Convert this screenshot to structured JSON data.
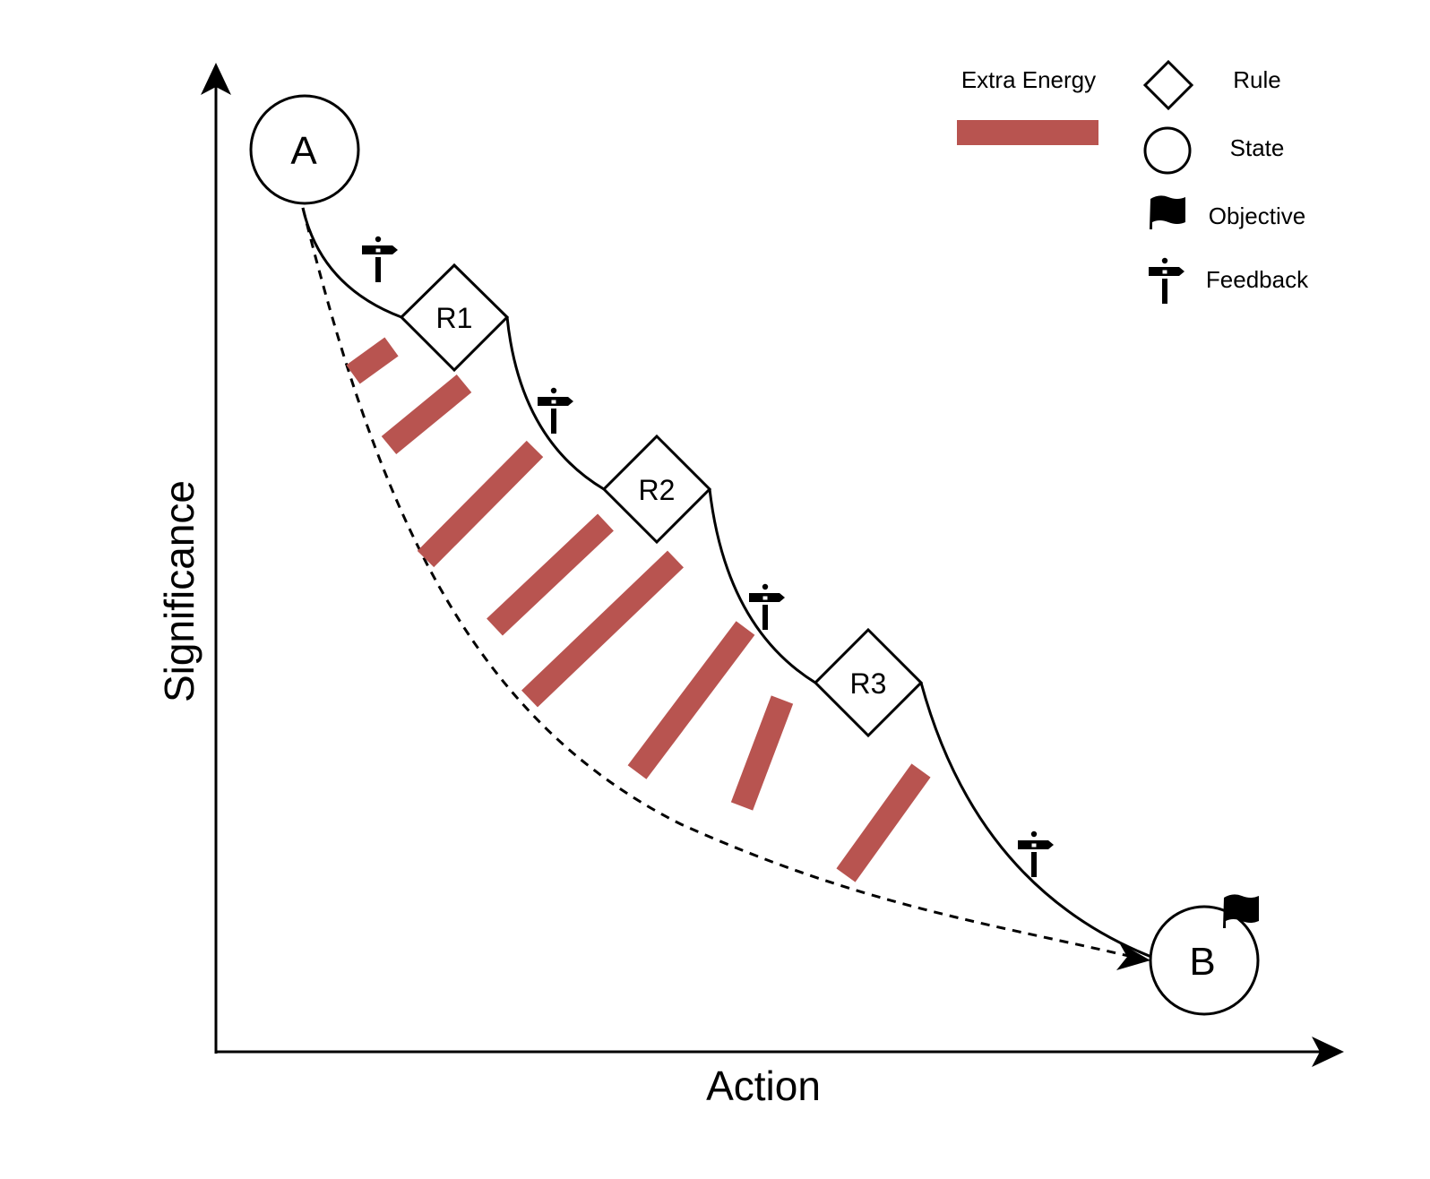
{
  "axes": {
    "x_label": "Action",
    "y_label": "Significance"
  },
  "states": {
    "start": "A",
    "end": "B"
  },
  "rules": [
    "R1",
    "R2",
    "R3"
  ],
  "legend": {
    "extra_energy": "Extra Energy",
    "rule": "Rule",
    "state": "State",
    "objective": "Objective",
    "feedback": "Feedback"
  },
  "colors": {
    "extra_energy": "#b85450",
    "line": "#000000"
  },
  "icons": {
    "objective": "flag-icon",
    "feedback": "signpost-icon",
    "rule": "diamond-shape",
    "state": "circle-shape"
  }
}
